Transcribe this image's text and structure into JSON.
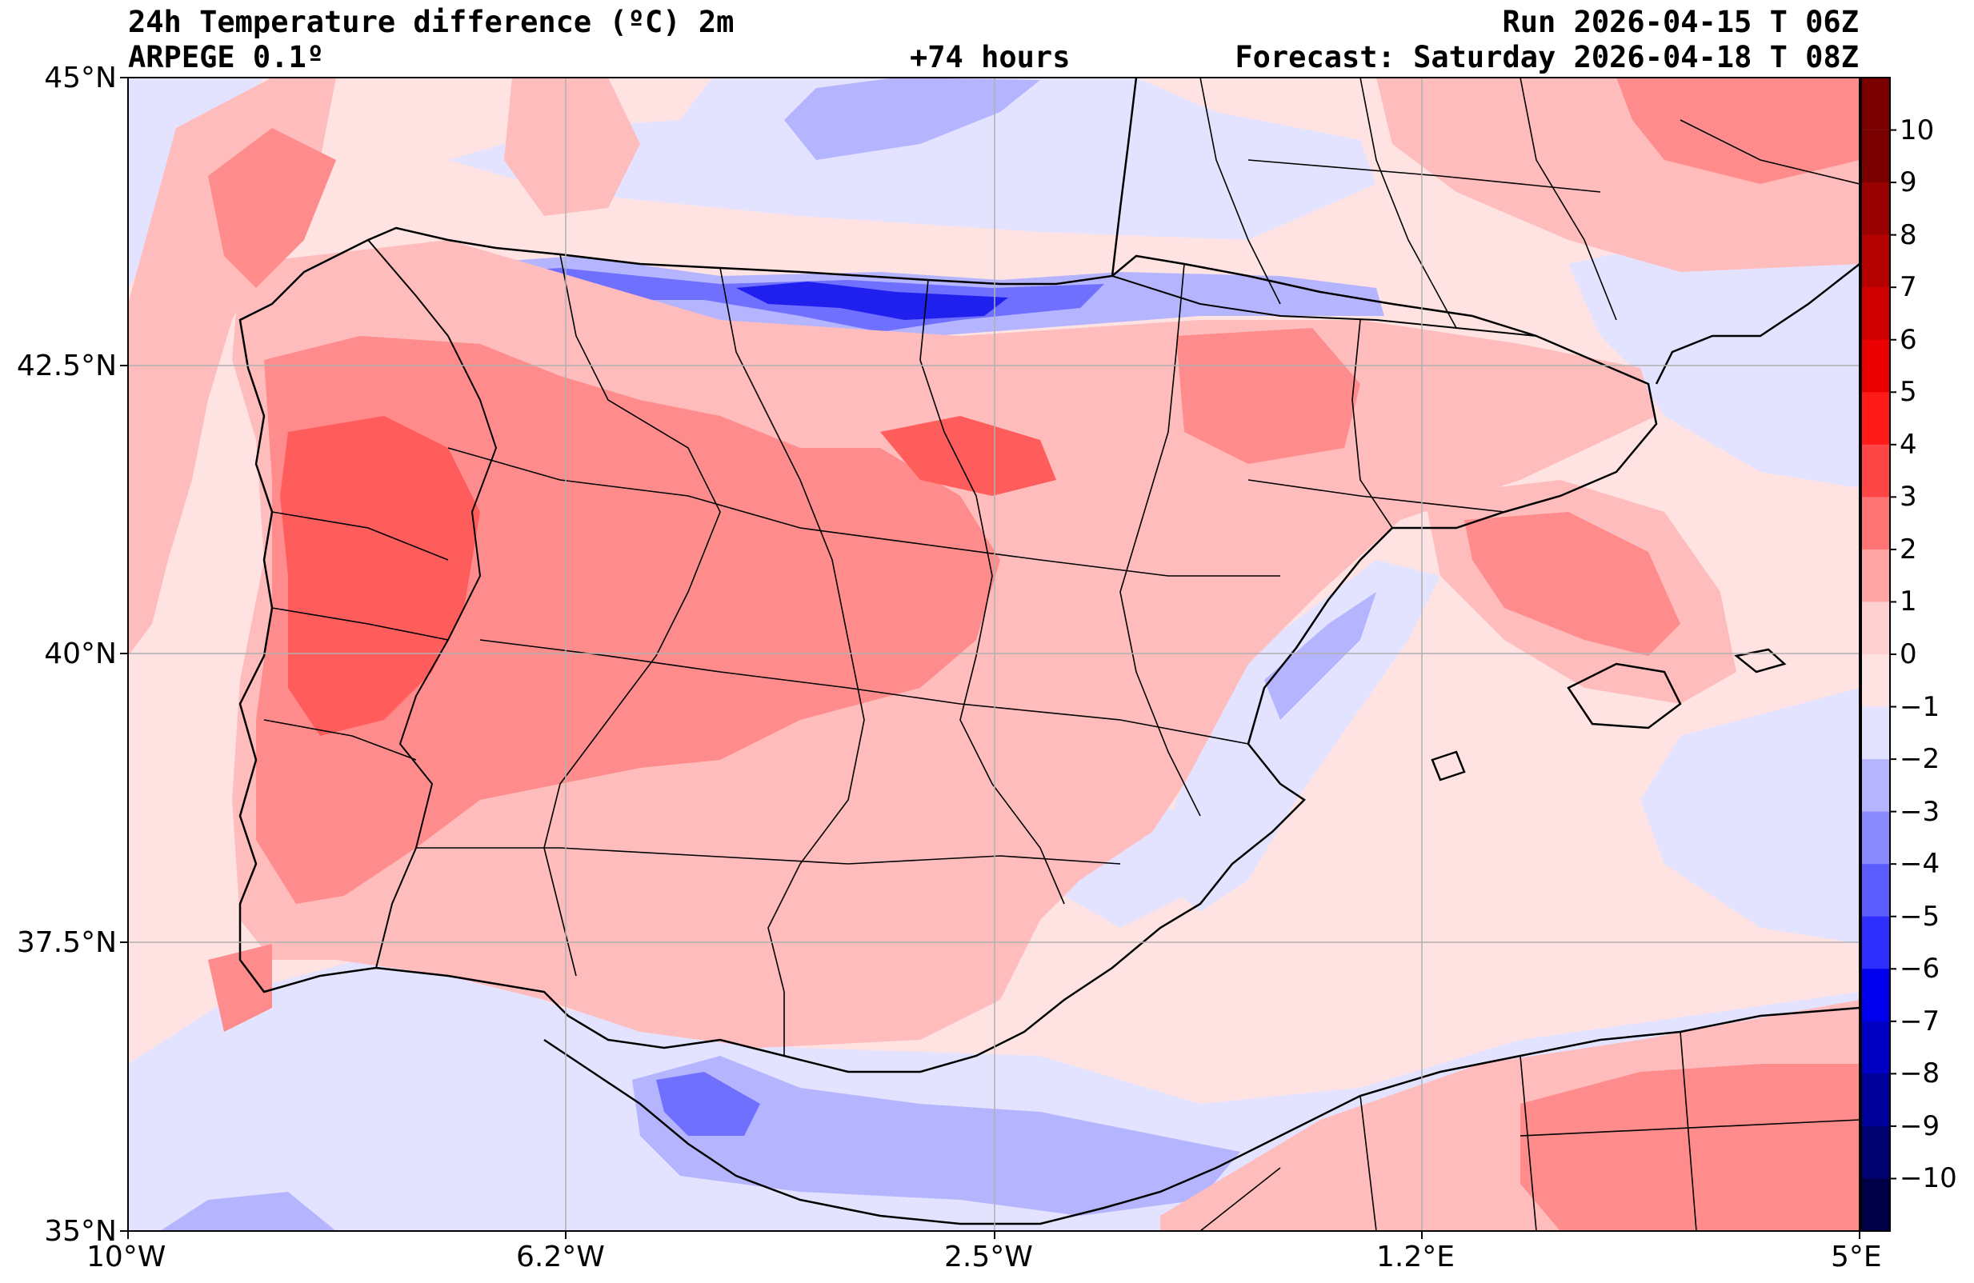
{
  "header": {
    "title": "24h Temperature difference (ºC) 2m",
    "model": "ARPEGE 0.1º",
    "lead": "+74 hours",
    "run": "Run 2026-04-15 T 06Z",
    "forecast": "Forecast: Saturday 2026-04-18 T 08Z"
  },
  "axes": {
    "lat_labels": [
      "45°N",
      "42.5°N",
      "40°N",
      "37.5°N",
      "35°N"
    ],
    "lon_labels": [
      "10°W",
      "6.2°W",
      "2.5°W",
      "1.2°E",
      "5°E"
    ]
  },
  "colorbar": {
    "levels": [
      10,
      9,
      8,
      7,
      6,
      5,
      4,
      3,
      2,
      1,
      0,
      -1,
      -2,
      -3,
      -4,
      -5,
      -6,
      -7,
      -8,
      -9,
      -10
    ],
    "labels": [
      "10",
      "9",
      "8",
      "7",
      "6",
      "5",
      "4",
      "3",
      "2",
      "1",
      "0",
      "−1",
      "−2",
      "−3",
      "−4",
      "−5",
      "−6",
      "−7",
      "−8",
      "−9",
      "−10"
    ],
    "colors": [
      "#7a0000",
      "#990000",
      "#b50000",
      "#d00000",
      "#ea0000",
      "#ff1a1a",
      "#ff4646",
      "#ff7474",
      "#ffa3a3",
      "#ffd0d0",
      "#ffe3e3",
      "#e3e3ff",
      "#b5b5ff",
      "#8a8aff",
      "#5c5cff",
      "#2e2eff",
      "#0000ee",
      "#0000c4",
      "#00009a",
      "#000070",
      "#000048"
    ]
  },
  "colors": {
    "background": "#ffe3e3",
    "warm1": "#ffbcbc",
    "warm2": "#ff8c8c",
    "warm3": "#ff5c5c",
    "cool1": "#e3e3ff",
    "cool2": "#b5b5ff",
    "cool3": "#7070ff",
    "cool4": "#2020ee",
    "grid": "#b0b0b0",
    "border": "#000000"
  }
}
